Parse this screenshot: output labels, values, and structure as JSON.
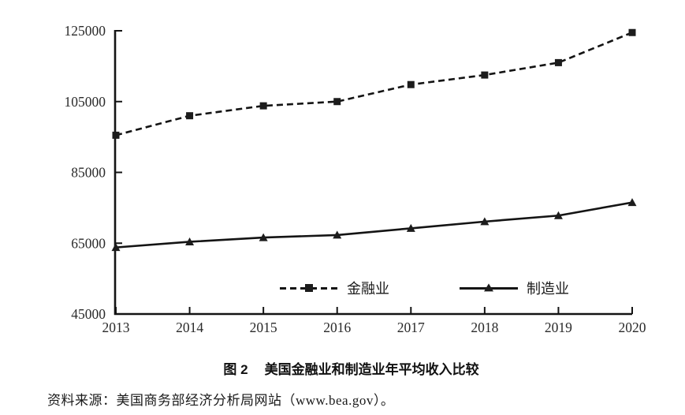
{
  "chart_data": {
    "type": "line",
    "categories": [
      "2013",
      "2014",
      "2015",
      "2016",
      "2017",
      "2018",
      "2019",
      "2020"
    ],
    "series": [
      {
        "name": "金融业",
        "line_style": "dashed",
        "marker": "square",
        "values": [
          95500,
          101000,
          103800,
          105000,
          109800,
          112500,
          116000,
          124500
        ]
      },
      {
        "name": "制造业",
        "line_style": "solid",
        "marker": "triangle",
        "values": [
          63800,
          65400,
          66600,
          67300,
          69200,
          71100,
          72800,
          76500
        ]
      }
    ],
    "xlabel": "",
    "ylabel": "",
    "ylim": [
      45000,
      125000
    ],
    "yticks": [
      45000,
      65000,
      85000,
      105000,
      125000
    ],
    "grid": false,
    "legend_position": "bottom-inside",
    "colors": {
      "line": "#141414",
      "text": "#2a2a2a",
      "background": "#ffffff"
    }
  },
  "caption": {
    "figure_label": "图 2",
    "title": "美国金融业和制造业年平均收入比较"
  },
  "source_note": "资料来源：美国商务部经济分析局网站（www.bea.gov）。"
}
